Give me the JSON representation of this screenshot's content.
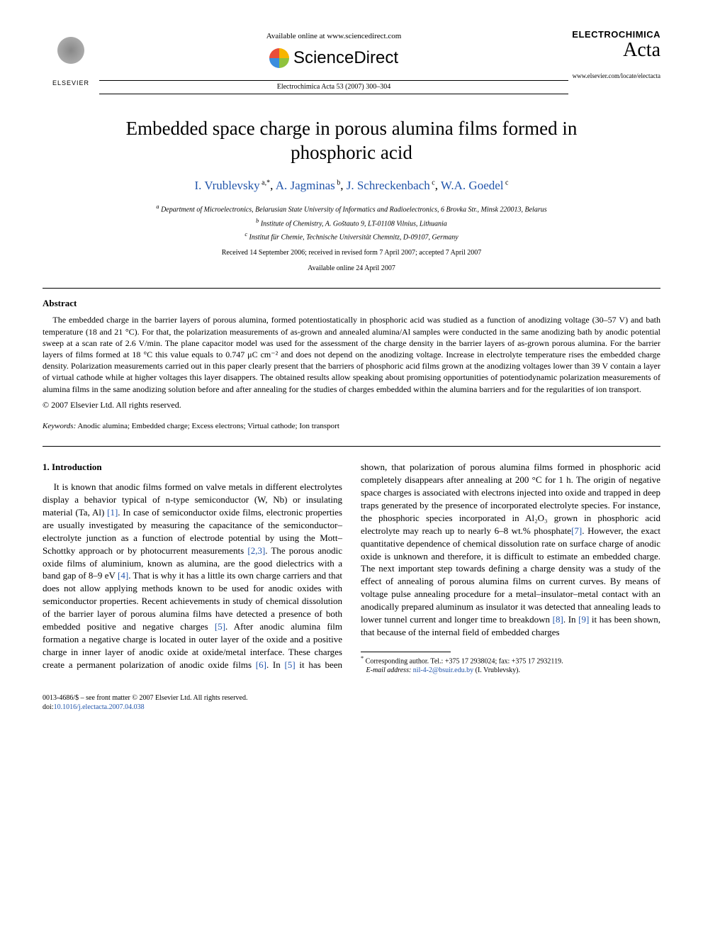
{
  "header": {
    "available_text": "Available online at www.sciencedirect.com",
    "sd_name": "ScienceDirect",
    "elsevier_label": "ELSEVIER",
    "journal_ref": "Electrochimica Acta 53 (2007) 300–304",
    "journal_name_1": "ELECTROCHIMICA",
    "journal_name_2": "Acta",
    "journal_url": "www.elsevier.com/locate/electacta"
  },
  "title": "Embedded space charge in porous alumina films formed in phosphoric acid",
  "authors": {
    "a1": {
      "name": "I. Vrublevsky",
      "aff": "a,",
      "mark": "*"
    },
    "a2": {
      "name": "A. Jagminas",
      "aff": "b"
    },
    "a3": {
      "name": "J. Schreckenbach",
      "aff": "c"
    },
    "a4": {
      "name": "W.A. Goedel",
      "aff": "c"
    }
  },
  "affiliations": {
    "a": "Department of Microelectronics, Belarusian State University of Informatics and Radioelectronics, 6 Brovka Str., Minsk 220013, Belarus",
    "b": "Institute of Chemistry, A. Goštauto 9, LT-01108 Vilnius, Lithuania",
    "c": "Institut für Chemie, Technische Universität Chemnitz, D-09107, Germany"
  },
  "dates": {
    "received": "Received 14 September 2006; received in revised form 7 April 2007; accepted 7 April 2007",
    "online": "Available online 24 April 2007"
  },
  "abstract": {
    "heading": "Abstract",
    "body": "The embedded charge in the barrier layers of porous alumina, formed potentiostatically in phosphoric acid was studied as a function of anodizing voltage (30–57 V) and bath temperature (18 and 21 °C). For that, the polarization measurements of as-grown and annealed alumina/Al samples were conducted in the same anodizing bath by anodic potential sweep at a scan rate of 2.6 V/min. The plane capacitor model was used for the assessment of the charge density in the barrier layers of as-grown porous alumina. For the barrier layers of films formed at 18 °C this value equals to 0.747 μC cm⁻² and does not depend on the anodizing voltage. Increase in electrolyte temperature rises the embedded charge density. Polarization measurements carried out in this paper clearly present that the barriers of phosphoric acid films grown at the anodizing voltages lower than 39 V contain a layer of virtual cathode while at higher voltages this layer disappers. The obtained results allow speaking about promising opportunities of potentiodynamic polarization measurements of alumina films in the same anodizing solution before and after annealing for the studies of charges embedded within the alumina barriers and for the regularities of ion transport.",
    "copyright": "© 2007 Elsevier Ltd. All rights reserved."
  },
  "keywords": {
    "label": "Keywords:",
    "text": "Anodic alumina; Embedded charge; Excess electrons; Virtual cathode; Ion transport"
  },
  "intro": {
    "heading": "1.  Introduction",
    "p1a": "It is known that anodic films formed on valve metals in different electrolytes display a behavior typical of n-type semiconductor (W, Nb) or insulating material (Ta, Al) ",
    "r1": "[1]",
    "p1b": ". In case of semiconductor oxide films, electronic properties are usually investigated by measuring the capacitance of the semiconductor–electrolyte junction as a function of electrode potential by using the Mott–Schottky approach or by photocurrent measurements ",
    "r23": "[2,3]",
    "p1c": ". The porous anodic oxide films of aluminium, known as alumina, are the good dielectrics with a band gap of 8–9 eV ",
    "r4": "[4]",
    "p1d": ". That is why it has a little its own charge carriers and that does not allow applying methods known to be used for anodic oxides with semiconductor properties. Recent achievements in study of chemical dissolution of the barrier layer of porous alumina films have detected a presence of both embedded positive and negative charges ",
    "r5": "[5]",
    "p1e": ". After anodic alumina film formation a negative charge is located in outer layer of the oxide and a positive charge in inner layer of anodic oxide at oxide/metal interface. These charges create a permanent polarization of anodic oxide films ",
    "r6": "[6]",
    "p1f": ". In ",
    "r5b": "[5]",
    "p1g": " it has been shown, that polarization of porous alumina films formed in phosphoric acid completely disappears after annealing at 200 °C for 1 h. The origin of negative space charges is associated with electrons injected into oxide and trapped in deep traps generated by the presence of incorporated electrolyte species. For instance, the phosphoric species incorporated in Al₂O₃ grown in phosphoric acid electrolyte may reach up to nearly 6–8 wt.% phosphate",
    "r7": "[7]",
    "p1h": ". However, the exact quantitative dependence of chemical dissolution rate on surface charge of anodic oxide is unknown and therefore, it is difficult to estimate an embedded charge. The next important step towards defining a charge density was a study of the effect of annealing of porous alumina films on current curves. By means of voltage pulse annealing procedure for a metal–insulator–metal contact with an anodically prepared aluminum as insulator it was detected that annealing leads to lower tunnel current and longer time to breakdown ",
    "r8": "[8]",
    "p1i": ". In ",
    "r9": "[9]",
    "p1j": " it has been shown, that because of the internal field of embedded charges"
  },
  "footnote": {
    "corr": "Corresponding author. Tel.: +375 17 2938024; fax: +375 17 2932119.",
    "email_label": "E-mail address:",
    "email": "nil-4-2@bsuir.edu.by",
    "email_who": "(I. Vrublevsky)."
  },
  "footer": {
    "line1": "0013-4686/$ – see front matter © 2007 Elsevier Ltd. All rights reserved.",
    "doi_label": "doi:",
    "doi": "10.1016/j.electacta.2007.04.038"
  },
  "colors": {
    "link": "#2255aa",
    "text": "#000000",
    "bg": "#ffffff"
  }
}
